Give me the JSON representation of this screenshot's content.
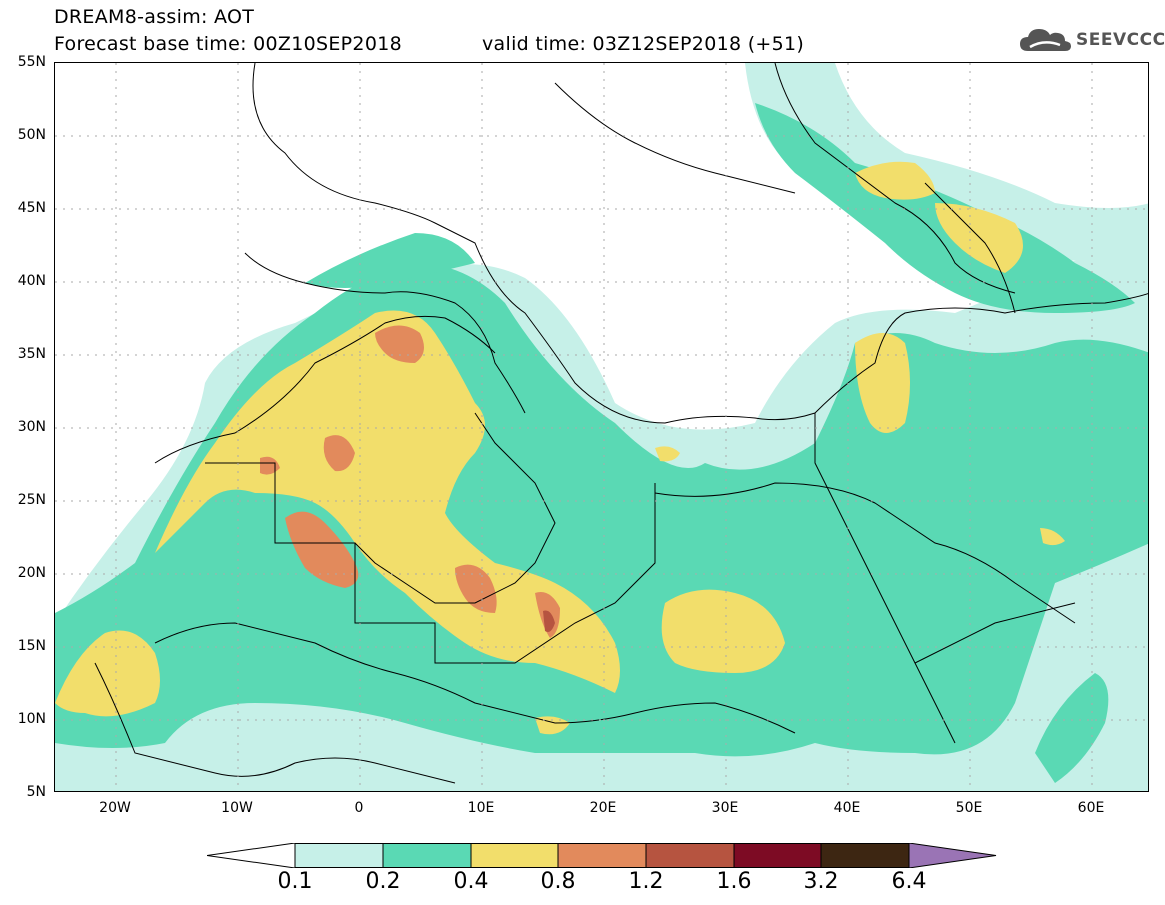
{
  "header": {
    "title": "DREAM8-assim: AOT",
    "base_time": "Forecast base time: 00Z10SEP2018",
    "valid_time": "valid time: 03Z12SEP2018 (+51)"
  },
  "logo": {
    "text": "SEEVCCC",
    "icon": "cloud-icon"
  },
  "map": {
    "lat_labels": [
      "55N",
      "50N",
      "45N",
      "40N",
      "35N",
      "30N",
      "25N",
      "20N",
      "15N",
      "10N",
      "5N"
    ],
    "lon_labels": [
      "20W",
      "10W",
      "0",
      "10E",
      "20E",
      "30E",
      "40E",
      "50E",
      "60E"
    ]
  },
  "legend": {
    "labels": [
      "0.1",
      "0.2",
      "0.4",
      "0.8",
      "1.2",
      "1.6",
      "3.2",
      "6.4"
    ],
    "colors": [
      "#c6f0e8",
      "#5ad9b4",
      "#f2de6b",
      "#e28a5c",
      "#b65440",
      "#7d0b24",
      "#3d2612",
      "#9a74b5"
    ]
  }
}
